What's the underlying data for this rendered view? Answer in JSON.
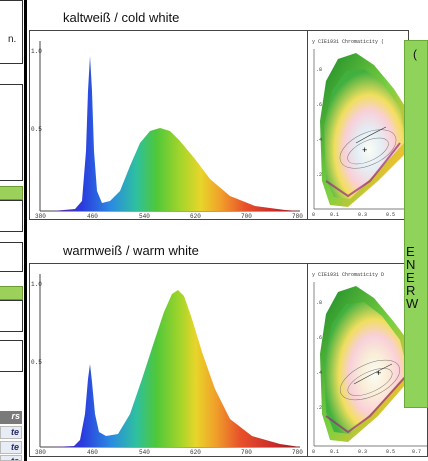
{
  "left_column": {
    "top_text": "n.",
    "tabs": [
      "rs",
      "te",
      "te",
      "te"
    ]
  },
  "sections": [
    {
      "caption": "kaltweiß / cold white",
      "spectrum": {
        "y_ticks": [
          "1.0",
          "0.5"
        ],
        "x_ticks": [
          "380",
          "460",
          "540",
          "620",
          "700",
          "780"
        ]
      },
      "cie": {
        "title": "y   CIE1931 Chromaticity (",
        "y_ticks": [
          ".8",
          ".6",
          ".4",
          ".2"
        ],
        "x_ticks": [
          "0",
          "0.1",
          "0.3",
          "0.5"
        ]
      }
    },
    {
      "caption": "warmweiß / warm white",
      "spectrum": {
        "y_ticks": [
          "1.0",
          "0.5"
        ],
        "x_ticks": [
          "380",
          "460",
          "540",
          "620",
          "700",
          "780"
        ]
      },
      "cie": {
        "title": "y   CIE1931 Chromaticity D",
        "y_ticks": [
          ".8",
          ".6",
          ".4",
          ".2"
        ],
        "x_ticks": [
          "0",
          "0.1",
          "0.3",
          "0.5",
          "0.7"
        ]
      }
    }
  ],
  "note_panel": {
    "top_char": "(",
    "letters": [
      "E",
      "N",
      "E",
      "R",
      "W"
    ]
  },
  "colors": {
    "note_green": "#8fd35a",
    "panel_border": "#444444"
  }
}
